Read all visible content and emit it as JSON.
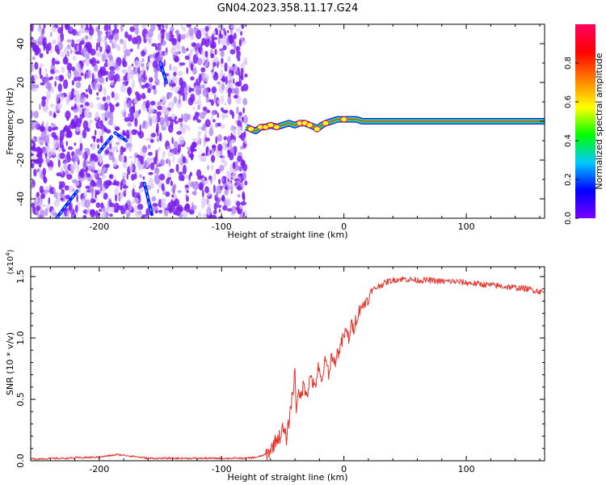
{
  "title": "GN04.2023.358.11.17.G24",
  "chart_data": [
    {
      "type": "heatmap",
      "xlabel": "Height of straight line (km)",
      "ylabel": "Frequency (Hz)",
      "xlim": [
        -256,
        164
      ],
      "ylim": [
        -50,
        50
      ],
      "x_ticks": [
        -200,
        -100,
        0,
        100
      ],
      "x_tick_labels": [
        "-200",
        "-100",
        "0",
        "100"
      ],
      "y_ticks": [
        -40,
        -20,
        0,
        20,
        40
      ],
      "y_tick_labels": [
        "-40",
        "-20",
        "0",
        "20",
        "40"
      ],
      "colorbar": {
        "label": "Normalized spectral amplitude",
        "range": [
          0,
          1
        ],
        "ticks": [
          0.0,
          0.2,
          0.4,
          0.6,
          0.8
        ],
        "tick_labels": [
          "0.0",
          "0.2",
          "0.4",
          "0.6",
          "0.8"
        ],
        "colormap": [
          "#ffffff",
          "#7a00ff",
          "#0000ff",
          "#00c8ff",
          "#00ff00",
          "#ffff00",
          "#ff8000",
          "#ff0000",
          "#ff0060"
        ]
      },
      "noise_region_x": [
        -256,
        -80
      ],
      "signal_track": {
        "x": [
          -80,
          -76,
          -72,
          -68,
          -64,
          -60,
          -55,
          -50,
          -45,
          -40,
          -36,
          -32,
          -28,
          -24,
          -22,
          -18,
          -15,
          -10,
          -5,
          0,
          5,
          10,
          15,
          30,
          60,
          100,
          164
        ],
        "y": [
          -3,
          -4,
          -5,
          -3,
          -3,
          -2,
          -3,
          -2,
          -1,
          -2,
          -1,
          -1,
          -2,
          -3,
          -4,
          -2,
          -1,
          0,
          1,
          1,
          1,
          1,
          0,
          0,
          0,
          0,
          0
        ]
      },
      "streaks": [
        {
          "x": [
            -235,
            -218
          ],
          "y": [
            -50,
            -36
          ]
        },
        {
          "x": [
            -200,
            -190
          ],
          "y": [
            -16,
            -8
          ]
        },
        {
          "x": [
            -187,
            -178
          ],
          "y": [
            -6,
            -10
          ]
        },
        {
          "x": [
            -150,
            -145
          ],
          "y": [
            30,
            20
          ]
        },
        {
          "x": [
            -163,
            -157
          ],
          "y": [
            -32,
            -48
          ]
        }
      ],
      "grid": false
    },
    {
      "type": "line",
      "series": [
        {
          "color": "#e8302a"
        }
      ],
      "xlabel": "Height of straight line (km)",
      "ylabel": "SNR (10 * v/v)",
      "y_multiplier_label": "(x10",
      "y_multiplier_exp": "4",
      "xlim": [
        -256,
        164
      ],
      "ylim": [
        0,
        1.58
      ],
      "x_ticks": [
        -200,
        -100,
        0,
        100
      ],
      "x_tick_labels": [
        "-200",
        "-100",
        "0",
        "100"
      ],
      "y_ticks": [
        0.0,
        0.5,
        1.0,
        1.5
      ],
      "y_tick_labels": [
        "0.0",
        "0.5",
        "1.0",
        "1.5"
      ],
      "x": [
        -256,
        -230,
        -200,
        -185,
        -175,
        -160,
        -140,
        -120,
        -100,
        -80,
        -70,
        -62,
        -58,
        -55,
        -52,
        -50,
        -47,
        -45,
        -43,
        -41,
        -40,
        -39,
        -38,
        -36,
        -33,
        -30,
        -27,
        -24,
        -21,
        -18,
        -16,
        -14,
        -12,
        -10,
        -8,
        -6,
        -4,
        -2,
        0,
        2,
        4,
        6,
        8,
        10,
        12,
        14,
        16,
        18,
        20,
        22,
        25,
        28,
        32,
        36,
        40,
        45,
        50,
        60,
        70,
        80,
        90,
        100,
        110,
        120,
        130,
        140,
        150,
        160,
        164
      ],
      "y": [
        0.015,
        0.02,
        0.03,
        0.05,
        0.04,
        0.02,
        0.02,
        0.02,
        0.02,
        0.02,
        0.03,
        0.06,
        0.12,
        0.18,
        0.2,
        0.26,
        0.18,
        0.32,
        0.48,
        0.6,
        0.78,
        0.4,
        0.55,
        0.5,
        0.62,
        0.55,
        0.7,
        0.58,
        0.75,
        0.62,
        0.8,
        0.78,
        0.7,
        0.88,
        0.78,
        0.86,
        0.9,
        0.95,
        1.02,
        1.05,
        1.0,
        1.1,
        1.08,
        1.16,
        1.2,
        1.28,
        1.24,
        1.32,
        1.3,
        1.38,
        1.4,
        1.42,
        1.44,
        1.46,
        1.47,
        1.48,
        1.48,
        1.47,
        1.47,
        1.46,
        1.46,
        1.45,
        1.44,
        1.43,
        1.42,
        1.41,
        1.4,
        1.38,
        1.37
      ],
      "grid": false
    }
  ]
}
